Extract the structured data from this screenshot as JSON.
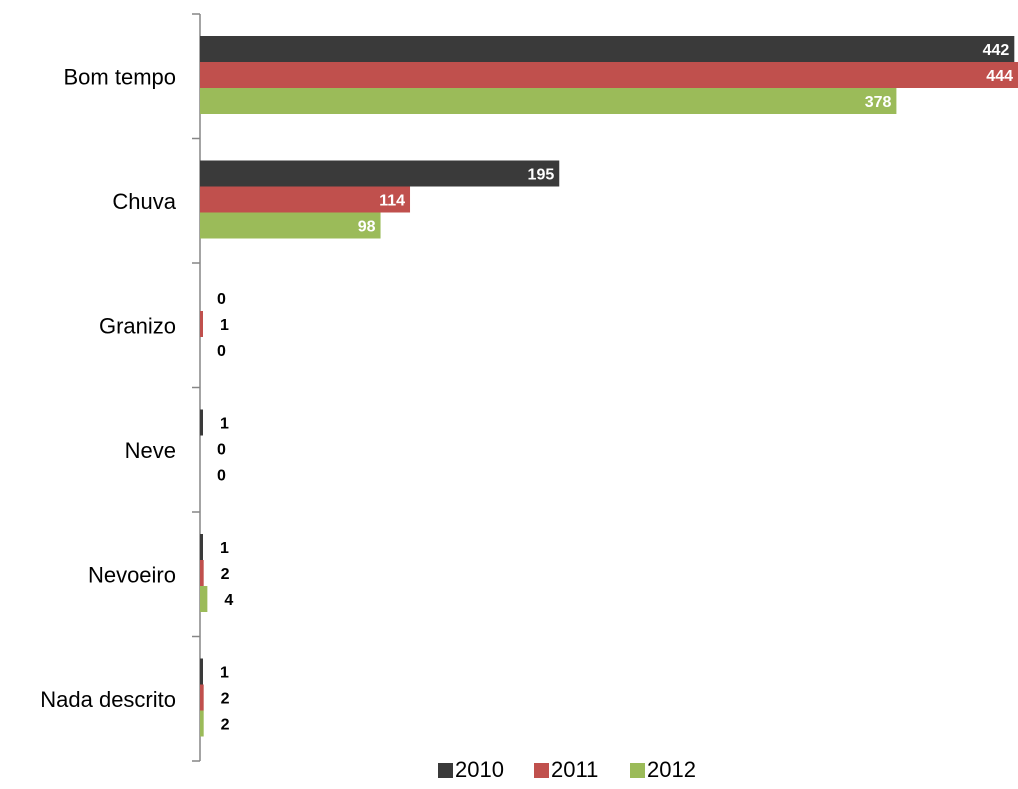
{
  "chart_data": {
    "type": "bar",
    "orientation": "horizontal",
    "title": "",
    "xlabel": "",
    "ylabel": "",
    "categories": [
      "Bom tempo",
      "Chuva",
      "Granizo",
      "Neve",
      "Nevoeiro",
      "Nada descrito"
    ],
    "series": [
      {
        "name": "2010",
        "color": "#3a3a3a",
        "values": [
          442,
          195,
          0,
          1,
          1,
          1
        ]
      },
      {
        "name": "2011",
        "color": "#c0504d",
        "values": [
          444,
          114,
          1,
          0,
          2,
          2
        ]
      },
      {
        "name": "2012",
        "color": "#9bbb59",
        "values": [
          378,
          98,
          0,
          0,
          4,
          2
        ]
      }
    ],
    "xlim": [
      0,
      444
    ],
    "grid": false,
    "legend_position": "bottom",
    "data_labels": true
  }
}
